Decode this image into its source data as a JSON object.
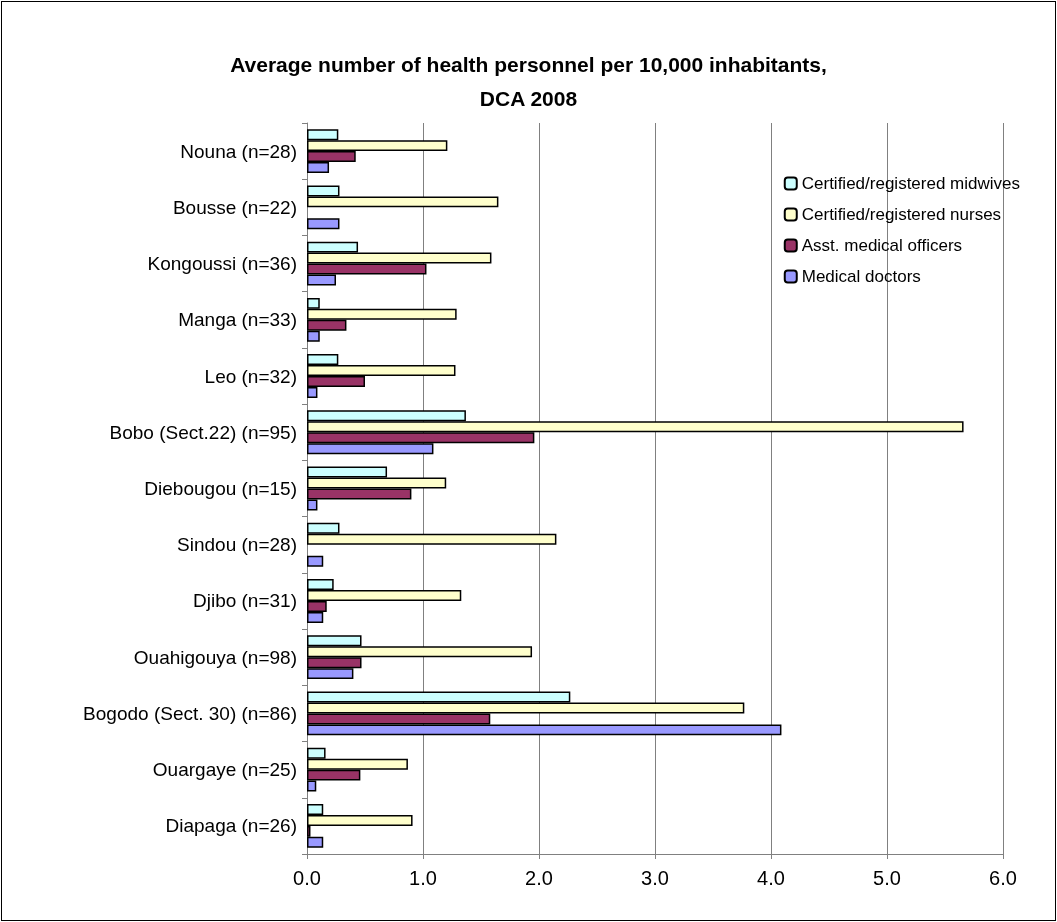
{
  "chart_data": {
    "type": "bar",
    "orientation": "horizontal",
    "title": "Average number of health personnel per 10,000 inhabitants,\nDCA 2008",
    "categories": [
      "Nouna (n=28)",
      "Bousse (n=22)",
      "Kongoussi (n=36)",
      "Manga (n=33)",
      "Leo (n=32)",
      "Bobo (Sect.22) (n=95)",
      "Diebougou (n=15)",
      "Sindou (n=28)",
      "Djibo (n=31)",
      "Ouahigouya (n=98)",
      "Bogodo (Sect. 30) (n=86)",
      "Ouargaye (n=25)",
      "Diapaga (n=26)"
    ],
    "series": [
      {
        "name": "Certified/registered midwives",
        "color": "#ccffff",
        "values": [
          0.27,
          0.28,
          0.44,
          0.11,
          0.27,
          1.37,
          0.69,
          0.28,
          0.23,
          0.47,
          2.27,
          0.16,
          0.14
        ]
      },
      {
        "name": "Certified/registered nurses",
        "color": "#ffffcc",
        "values": [
          1.21,
          1.65,
          1.59,
          1.29,
          1.28,
          5.66,
          1.2,
          2.15,
          1.33,
          1.94,
          3.77,
          0.87,
          0.91
        ]
      },
      {
        "name": "Asst. medical officers",
        "color": "#993366",
        "values": [
          0.42,
          null,
          1.03,
          0.34,
          0.5,
          1.96,
          0.9,
          null,
          0.17,
          0.47,
          1.58,
          0.46,
          0.03
        ]
      },
      {
        "name": "Medical doctors",
        "color": "#9999ff",
        "values": [
          0.19,
          0.28,
          0.25,
          0.11,
          0.09,
          1.09,
          0.09,
          0.14,
          0.14,
          0.4,
          4.09,
          0.08,
          0.14
        ]
      }
    ],
    "xlim": [
      0,
      6
    ],
    "xticks": [
      {
        "value": 0,
        "label": "0.0"
      },
      {
        "value": 1,
        "label": "1.0"
      },
      {
        "value": 2,
        "label": "2.0"
      },
      {
        "value": 3,
        "label": "3.0"
      },
      {
        "value": 4,
        "label": "4.0"
      },
      {
        "value": 5,
        "label": "5.0"
      },
      {
        "value": 6,
        "label": "6.0"
      }
    ],
    "grid": "x",
    "legend": "top right"
  }
}
